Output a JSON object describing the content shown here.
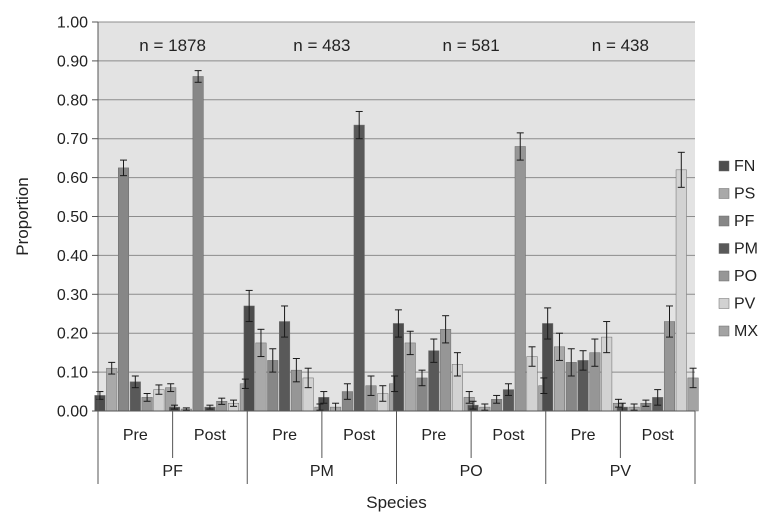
{
  "chart_data": {
    "type": "bar",
    "title": "",
    "xlabel": "Species",
    "ylabel": "Proportion",
    "ylim": [
      0,
      1
    ],
    "yticks": [
      "0.00",
      "0.10",
      "0.20",
      "0.30",
      "0.40",
      "0.50",
      "0.60",
      "0.70",
      "0.80",
      "0.90",
      "1.00"
    ],
    "grid": true,
    "legend_position": "right",
    "groups": [
      {
        "label": "PF",
        "annotation": "n = 1878",
        "subgroups": [
          "Pre",
          "Post"
        ]
      },
      {
        "label": "PM",
        "annotation": "n = 483",
        "subgroups": [
          "Pre",
          "Post"
        ]
      },
      {
        "label": "PO",
        "annotation": "n = 581",
        "subgroups": [
          "Pre",
          "Post"
        ]
      },
      {
        "label": "PV",
        "annotation": "n = 438",
        "subgroups": [
          "Pre",
          "Post"
        ]
      }
    ],
    "categories": [
      "PF Pre",
      "PF Post",
      "PM Pre",
      "PM Post",
      "PO Pre",
      "PO Post",
      "PV Pre",
      "PV Post"
    ],
    "series": [
      {
        "name": "FN",
        "color": "#4d4d4d",
        "values": [
          0.04,
          0.01,
          0.27,
          0.035,
          0.225,
          0.015,
          0.225,
          0.01
        ],
        "errors": [
          0.01,
          0.005,
          0.04,
          0.015,
          0.035,
          0.01,
          0.04,
          0.01
        ]
      },
      {
        "name": "PS",
        "color": "#a9a9a9",
        "values": [
          0.11,
          0.005,
          0.175,
          0.01,
          0.175,
          0.01,
          0.165,
          0.01
        ],
        "errors": [
          0.015,
          0.003,
          0.035,
          0.01,
          0.03,
          0.008,
          0.035,
          0.008
        ]
      },
      {
        "name": "PF",
        "color": "#878787",
        "values": [
          0.625,
          0.86,
          0.13,
          0.05,
          0.085,
          0.03,
          0.125,
          0.02
        ],
        "errors": [
          0.02,
          0.015,
          0.03,
          0.02,
          0.02,
          0.01,
          0.035,
          0.008
        ]
      },
      {
        "name": "PM",
        "color": "#595959",
        "values": [
          0.075,
          0.01,
          0.23,
          0.735,
          0.155,
          0.055,
          0.13,
          0.035
        ],
        "errors": [
          0.015,
          0.005,
          0.04,
          0.035,
          0.03,
          0.015,
          0.025,
          0.02
        ]
      },
      {
        "name": "PO",
        "color": "#969696",
        "values": [
          0.035,
          0.025,
          0.105,
          0.065,
          0.21,
          0.68,
          0.15,
          0.23
        ],
        "errors": [
          0.01,
          0.008,
          0.03,
          0.025,
          0.035,
          0.035,
          0.035,
          0.04
        ]
      },
      {
        "name": "PV",
        "color": "#d2d2d2",
        "values": [
          0.055,
          0.02,
          0.085,
          0.045,
          0.12,
          0.14,
          0.19,
          0.62
        ],
        "errors": [
          0.012,
          0.008,
          0.025,
          0.02,
          0.03,
          0.025,
          0.04,
          0.045
        ]
      },
      {
        "name": "MX",
        "color": "#a3a3a3",
        "values": [
          0.06,
          0.07,
          0.01,
          0.07,
          0.035,
          0.065,
          0.02,
          0.085
        ],
        "errors": [
          0.01,
          0.012,
          0.008,
          0.02,
          0.015,
          0.02,
          0.01,
          0.025
        ]
      }
    ]
  }
}
